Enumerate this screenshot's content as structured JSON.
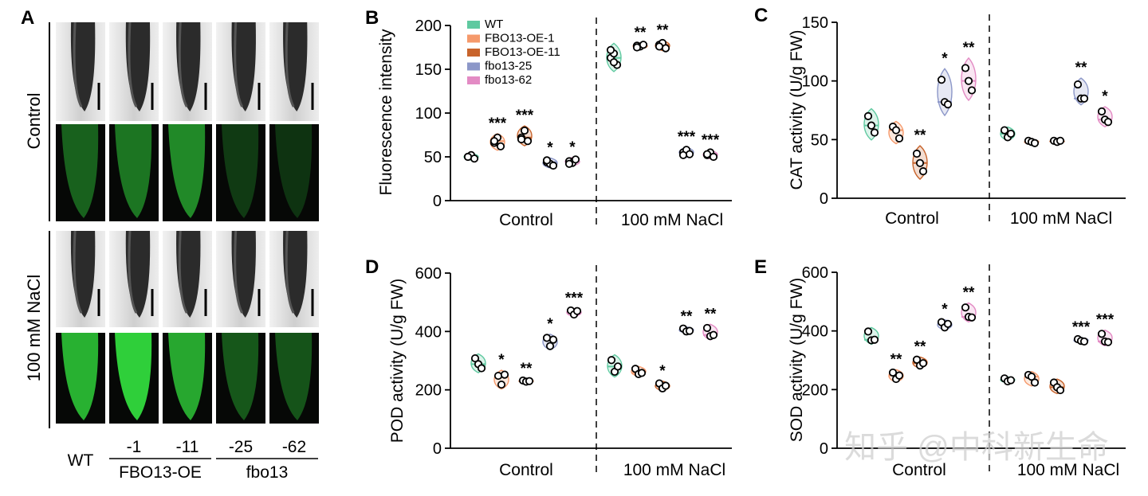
{
  "colors": {
    "WT": "#5fc9a0",
    "FBO13-OE-1": "#f5996b",
    "FBO13-OE-11": "#c8642c",
    "fbo13-25": "#8c97c8",
    "fbo13-62": "#e38bc4",
    "root_bg": "#d8d8d8",
    "fluor_bg": "#060806",
    "fluor_green": "#2fcf3a"
  },
  "panel_a": {
    "label": "A",
    "row_labels": [
      "Control",
      "100 mM NaCl"
    ],
    "column_labels": [
      "WT",
      "-1",
      "-11",
      "-25",
      "-62"
    ],
    "group_labels": [
      "FBO13-OE",
      "fbo13"
    ],
    "fluorescence_brightness": [
      [
        0.45,
        0.55,
        0.65,
        0.25,
        0.22
      ],
      [
        0.85,
        1.0,
        0.8,
        0.4,
        0.38
      ]
    ]
  },
  "watermark": "知乎 @中科新生命",
  "chart_data": [
    {
      "panel": "B",
      "type": "scatter",
      "ylabel": "Fluorescence intensity",
      "ylim": [
        0,
        200
      ],
      "yticks": [
        0,
        50,
        100,
        150,
        200
      ],
      "groups": [
        "Control",
        "100 mM NaCl"
      ],
      "legend": [
        "WT",
        " FBO13-OE-1",
        "FBO13-OE-11",
        "fbo13-25",
        "fbo13-62"
      ],
      "series": [
        {
          "values": [
            [
              50,
              52,
              48,
              50
            ],
            [
              163,
              168,
              155,
              172,
              158
            ]
          ],
          "sig": [
            "",
            ""
          ]
        },
        {
          "values": [
            [
              66,
              72,
              62,
              68
            ],
            [
              177,
              176,
              178,
              175
            ]
          ],
          "sig": [
            "***",
            "**"
          ]
        },
        {
          "values": [
            [
              72,
              80,
              68,
              70
            ],
            [
              178,
              180,
              174,
              176
            ]
          ],
          "sig": [
            "***",
            "**"
          ]
        },
        {
          "values": [
            [
              44,
              42,
              40,
              46
            ],
            [
              55,
              58,
              53,
              52
            ]
          ],
          "sig": [
            "*",
            "***"
          ]
        },
        {
          "values": [
            [
              45,
              43,
              47,
              42
            ],
            [
              52,
              55,
              50,
              53
            ]
          ],
          "sig": [
            "*",
            "***"
          ]
        }
      ]
    },
    {
      "panel": "C",
      "type": "scatter",
      "ylabel": "CAT activity (U/g FW)",
      "ylim": [
        0,
        150
      ],
      "yticks": [
        0,
        50,
        100,
        150
      ],
      "groups": [
        "Control",
        "100 mM NaCl"
      ],
      "series": [
        {
          "values": [
            [
              70,
              62,
              56
            ],
            [
              58,
              52,
              55
            ]
          ],
          "sig": [
            "",
            ""
          ]
        },
        {
          "values": [
            [
              61,
              58,
              51
            ],
            [
              49,
              48,
              47
            ]
          ],
          "sig": [
            "",
            ""
          ]
        },
        {
          "values": [
            [
              38,
              30,
              23
            ],
            [
              49,
              48,
              49
            ]
          ],
          "sig": [
            "**",
            ""
          ]
        },
        {
          "values": [
            [
              101,
              82,
              80
            ],
            [
              97,
              85,
              85
            ]
          ],
          "sig": [
            "*",
            "**"
          ]
        },
        {
          "values": [
            [
              111,
              100,
              92
            ],
            [
              74,
              67,
              65
            ]
          ],
          "sig": [
            "**",
            "*"
          ]
        }
      ]
    },
    {
      "panel": "D",
      "type": "scatter",
      "ylabel": "POD activity (U/g FW)",
      "ylim": [
        0,
        600
      ],
      "yticks": [
        0,
        200,
        400,
        600
      ],
      "groups": [
        "Control",
        "100 mM NaCl"
      ],
      "series": [
        {
          "values": [
            [
              308,
              288,
              274
            ],
            [
              302,
              262,
              280
            ]
          ],
          "sig": [
            "",
            ""
          ]
        },
        {
          "values": [
            [
              248,
              218,
              252
            ],
            [
              272,
              254,
              258
            ]
          ],
          "sig": [
            "*",
            ""
          ]
        },
        {
          "values": [
            [
              232,
              228,
              230
            ],
            [
              222,
              205,
              214
            ]
          ],
          "sig": [
            "**",
            "*"
          ]
        },
        {
          "values": [
            [
              378,
              350,
              372
            ],
            [
              410,
              400,
              402
            ]
          ],
          "sig": [
            "*",
            "**"
          ]
        },
        {
          "values": [
            [
              472,
              458,
              470
            ],
            [
              412,
              384,
              388
            ]
          ],
          "sig": [
            "***",
            "**"
          ]
        }
      ]
    },
    {
      "panel": "E",
      "type": "scatter",
      "ylabel": "SOD activity (U/g FW)",
      "ylim": [
        0,
        600
      ],
      "yticks": [
        0,
        200,
        400,
        600
      ],
      "groups": [
        "Control",
        "100 mM NaCl"
      ],
      "series": [
        {
          "values": [
            [
              398,
              368,
              370
            ],
            [
              238,
              228,
              232
            ]
          ],
          "sig": [
            "",
            ""
          ]
        },
        {
          "values": [
            [
              258,
              236,
              248
            ],
            [
              250,
              244,
              224
            ]
          ],
          "sig": [
            "**",
            ""
          ]
        },
        {
          "values": [
            [
              302,
              282,
              290
            ],
            [
              224,
              208,
              198
            ]
          ],
          "sig": [
            "**",
            ""
          ]
        },
        {
          "values": [
            [
              430,
              412,
              424
            ],
            [
              372,
              366,
              364
            ]
          ],
          "sig": [
            "*",
            "***"
          ]
        },
        {
          "values": [
            [
              480,
              448,
              446
            ],
            [
              390,
              364,
              362
            ]
          ],
          "sig": [
            "**",
            "***"
          ]
        }
      ]
    }
  ]
}
